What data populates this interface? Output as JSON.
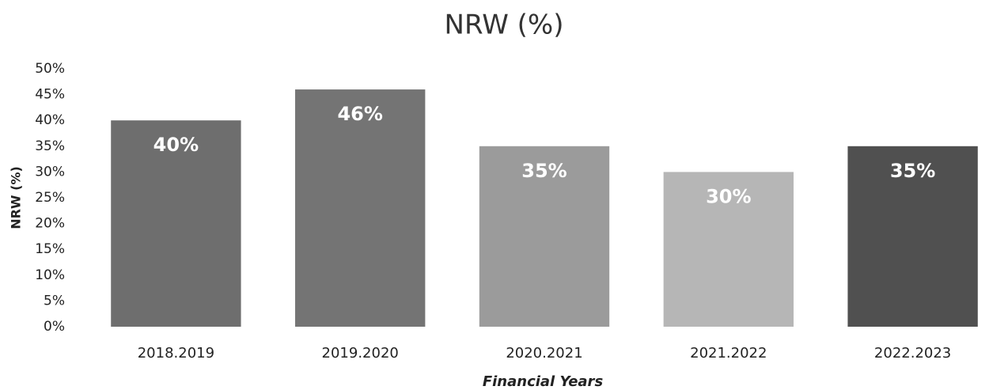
{
  "chart_data": {
    "type": "bar",
    "title": "NRW (%)",
    "x_label": "Financial Years",
    "y_label": "NRW (%)",
    "categories": [
      "2018.2019",
      "2019.2020",
      "2020.2021",
      "2021.2022",
      "2022.2023"
    ],
    "values": [
      40,
      46,
      35,
      30,
      35
    ],
    "value_labels": [
      "40%",
      "46%",
      "35%",
      "30%",
      "35%"
    ],
    "colors": [
      "#6e6e6e",
      "#747474",
      "#9b9b9b",
      "#b6b6b6",
      "#505050"
    ],
    "ylim": [
      0,
      50
    ],
    "yticks": [
      {
        "value": 0,
        "label": "0%"
      },
      {
        "value": 5,
        "label": "5%"
      },
      {
        "value": 10,
        "label": "10%"
      },
      {
        "value": 15,
        "label": "15%"
      },
      {
        "value": 20,
        "label": "20%"
      },
      {
        "value": 25,
        "label": "25%"
      },
      {
        "value": 30,
        "label": "30%"
      },
      {
        "value": 35,
        "label": "35%"
      },
      {
        "value": 40,
        "label": "40%"
      },
      {
        "value": 45,
        "label": "45%"
      },
      {
        "value": 50,
        "label": "50%"
      }
    ],
    "grid": false
  }
}
